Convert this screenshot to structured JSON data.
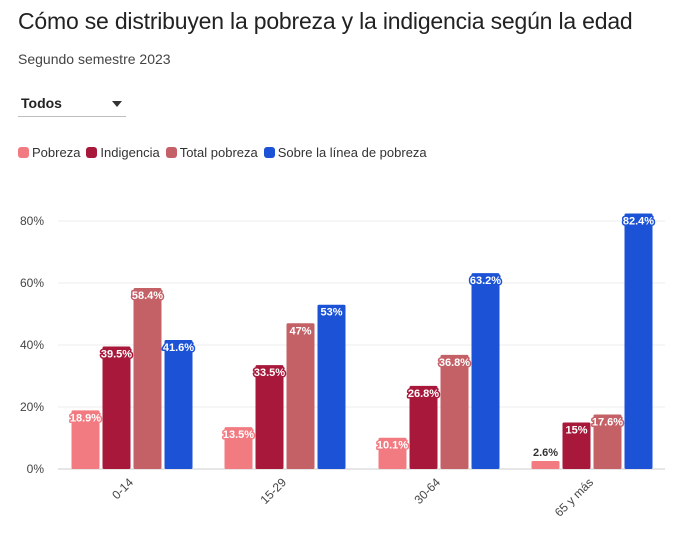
{
  "header": {
    "title": "Cómo se distribuyen la pobreza y la indigencia según la edad",
    "subtitle": "Segundo semestre 2023"
  },
  "filter": {
    "selected": "Todos"
  },
  "colors": {
    "pobreza": "#f27b81",
    "indigencia": "#a8183b",
    "total_pobreza": "#c46167",
    "sobre_linea": "#1c53d6"
  },
  "chart_data": {
    "type": "bar",
    "categories": [
      "0-14",
      "15-29",
      "30-64",
      "65 y más"
    ],
    "series": [
      {
        "name": "Pobreza",
        "values": [
          18.9,
          13.5,
          10.1,
          2.6
        ],
        "labels": [
          "18.9%",
          "13.5%",
          "10.1%",
          "2.6%"
        ],
        "color": "#f27b81"
      },
      {
        "name": "Indigencia",
        "values": [
          39.5,
          33.5,
          26.8,
          15
        ],
        "labels": [
          "39.5%",
          "33.5%",
          "26.8%",
          "15%"
        ],
        "color": "#a8183b"
      },
      {
        "name": "Total pobreza",
        "values": [
          58.4,
          47,
          36.8,
          17.6
        ],
        "labels": [
          "58.4%",
          "47%",
          "36.8%",
          "17.6%"
        ],
        "color": "#c46167"
      },
      {
        "name": "Sobre la línea de pobreza",
        "values": [
          41.6,
          53,
          63.2,
          82.4
        ],
        "labels": [
          "41.6%",
          "53%",
          "63.2%",
          "82.4%"
        ],
        "color": "#1c53d6"
      }
    ],
    "yticks": [
      "0%",
      "20%",
      "40%",
      "60%",
      "80%"
    ],
    "ylim": [
      0,
      80
    ],
    "grid": true,
    "legend_position": "top-left"
  }
}
